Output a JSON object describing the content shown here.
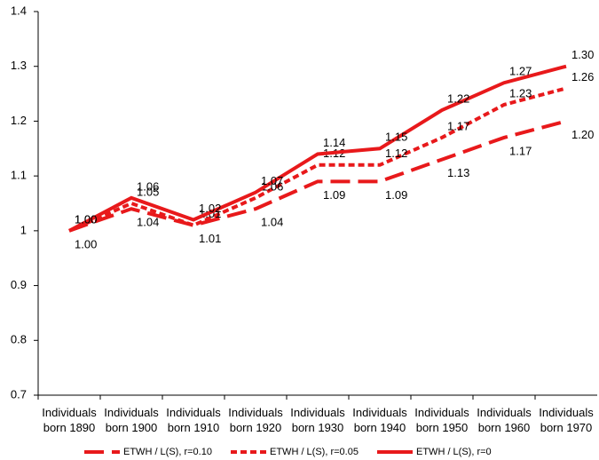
{
  "chart_data": {
    "type": "line",
    "categories": [
      "Individuals born 1890",
      "Individuals born 1900",
      "Individuals born 1910",
      "Individuals born 1920",
      "Individuals born 1930",
      "Individuals born 1940",
      "Individuals born 1950",
      "Individuals born 1960",
      "Individuals born 1970"
    ],
    "series": [
      {
        "name": "ETWH / L(S), r=0.10",
        "color": "#e8191b",
        "dash": "long",
        "values": [
          1.0,
          1.04,
          1.01,
          1.04,
          1.09,
          1.09,
          1.13,
          1.17,
          1.2
        ],
        "value_labels": [
          "1.00",
          "1.04",
          "1.01",
          "1.04",
          "1.09",
          "1.09",
          "1.13",
          "1.17",
          "1.20"
        ]
      },
      {
        "name": "ETWH / L(S), r=0.05",
        "color": "#e8191b",
        "dash": "short",
        "values": [
          1.0,
          1.05,
          1.01,
          1.06,
          1.12,
          1.12,
          1.17,
          1.23,
          1.26
        ],
        "value_labels": [
          "1.00",
          "1.05",
          "1.01",
          "1.06",
          "1.12",
          "1.12",
          "1.17",
          "1.23",
          "1.26"
        ]
      },
      {
        "name": "ETWH / L(S), r=0",
        "color": "#e8191b",
        "dash": "solid",
        "values": [
          1.0,
          1.06,
          1.02,
          1.07,
          1.14,
          1.15,
          1.22,
          1.27,
          1.3
        ],
        "value_labels": [
          "1.00",
          "1.06",
          "1.02",
          "1.07",
          "1.14",
          "1.15",
          "1.22",
          "1.27",
          "1.30"
        ]
      }
    ],
    "ylim": [
      0.7,
      1.4
    ],
    "yticks": [
      0.7,
      0.8,
      0.9,
      1,
      1.1,
      1.2,
      1.3,
      1.4
    ],
    "legend": "bottom"
  }
}
